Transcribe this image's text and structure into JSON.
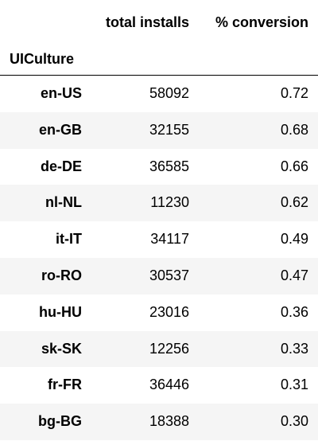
{
  "table": {
    "columns": [
      "total installs",
      "% conversion"
    ],
    "index_name": "UICulture",
    "rows": [
      {
        "index": "en-US",
        "installs": "58092",
        "conversion": "0.72"
      },
      {
        "index": "en-GB",
        "installs": "32155",
        "conversion": "0.68"
      },
      {
        "index": "de-DE",
        "installs": "36585",
        "conversion": "0.66"
      },
      {
        "index": "nl-NL",
        "installs": "11230",
        "conversion": "0.62"
      },
      {
        "index": "it-IT",
        "installs": "34117",
        "conversion": "0.49"
      },
      {
        "index": "ro-RO",
        "installs": "30537",
        "conversion": "0.47"
      },
      {
        "index": "hu-HU",
        "installs": "23016",
        "conversion": "0.36"
      },
      {
        "index": "sk-SK",
        "installs": "12256",
        "conversion": "0.33"
      },
      {
        "index": "fr-FR",
        "installs": "36446",
        "conversion": "0.31"
      },
      {
        "index": "bg-BG",
        "installs": "18388",
        "conversion": "0.30"
      }
    ]
  }
}
